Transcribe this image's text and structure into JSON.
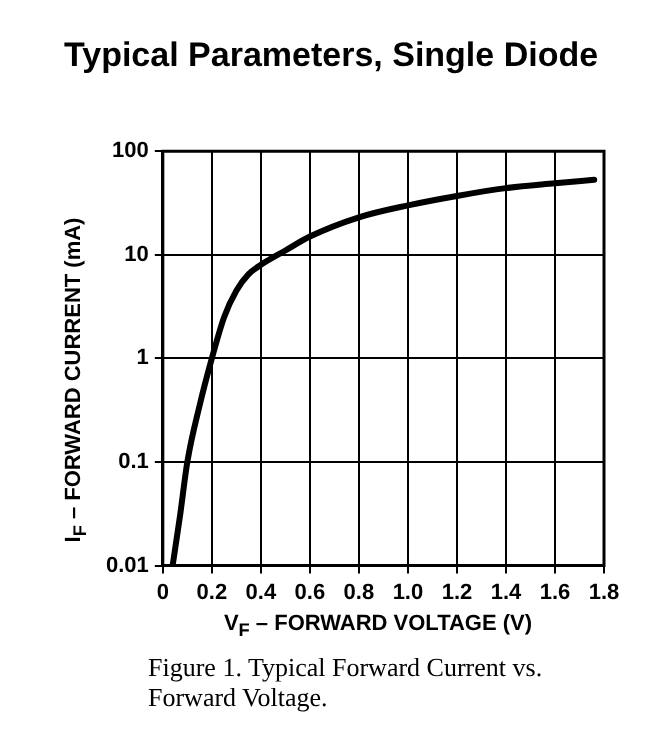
{
  "chart_data": {
    "type": "line",
    "title": "Typical Parameters, Single Diode",
    "xlabel": "V$_{F}$ – FORWARD VOLTAGE (V)",
    "ylabel": "I$_{F}$ – FORWARD CURRENT (mA)",
    "annotations": [
      "Figure 1.  Typical Forward Current vs. Forward Voltage."
    ],
    "series": [
      {
        "color": "#000000",
        "x": [
          0.04,
          0.07,
          0.1,
          0.15,
          0.2,
          0.25,
          0.3,
          0.35,
          0.4,
          0.5,
          0.6,
          0.8,
          1.0,
          1.2,
          1.4,
          1.6,
          1.76
        ],
        "values": [
          0.01,
          0.03,
          0.1,
          0.35,
          1,
          2.5,
          4.5,
          6.5,
          8,
          11,
          15,
          23,
          30,
          37,
          44,
          49,
          53
        ]
      }
    ],
    "xlim": [
      0,
      1.8
    ],
    "xticks": [
      0,
      0.2,
      0.4,
      0.6,
      0.8,
      {
        "value": 1,
        "label": "1.0"
      },
      1.2,
      1.4,
      1.6,
      1.8
    ],
    "ylim": [
      0.01,
      100
    ],
    "yticks": [
      0.01,
      0.1,
      1,
      10,
      100
    ],
    "log": "y",
    "grid": true,
    "legend": false,
    "marker": "none",
    "line_style": "solid"
  }
}
